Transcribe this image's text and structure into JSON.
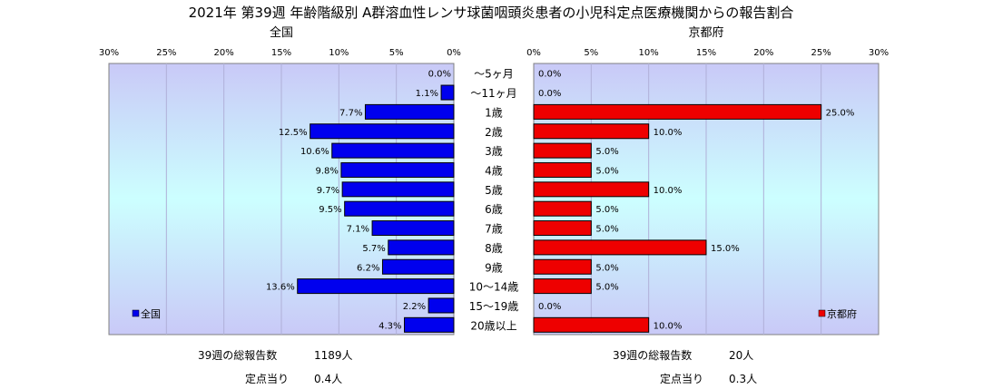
{
  "title": "2021年 第39週 年齢階級別 A群溶血性レンサ球菌咽頭炎患者の小児科定点医療機関からの報告割合",
  "chart_data": {
    "type": "bar",
    "categories": [
      "～5ヶ月",
      "～11ヶ月",
      "1歳",
      "2歳",
      "3歳",
      "4歳",
      "5歳",
      "6歳",
      "7歳",
      "8歳",
      "9歳",
      "10～14歳",
      "15～19歳",
      "20歳以上"
    ],
    "xlim": [
      0,
      30
    ],
    "ticks": [
      0,
      5,
      10,
      15,
      20,
      25,
      30
    ],
    "tick_suffix": "%",
    "grid": true,
    "panels": [
      {
        "title": "全国",
        "name": "全国",
        "color": "#0000ee",
        "direction": "left",
        "legend_position": "bottom-left",
        "values": [
          0.0,
          1.1,
          7.7,
          12.5,
          10.6,
          9.8,
          9.7,
          9.5,
          7.1,
          5.7,
          6.2,
          13.6,
          2.2,
          4.3
        ],
        "labels": [
          "0.0%",
          "1.1%",
          "7.7%",
          "12.5%",
          "10.6%",
          "9.8%",
          "9.7%",
          "9.5%",
          "7.1%",
          "5.7%",
          "6.2%",
          "13.6%",
          "2.2%",
          "4.3%"
        ]
      },
      {
        "title": "京都府",
        "name": "京都府",
        "color": "#ee0000",
        "direction": "right",
        "legend_position": "bottom-right",
        "values": [
          0.0,
          0.0,
          25.0,
          10.0,
          5.0,
          5.0,
          10.0,
          5.0,
          5.0,
          15.0,
          5.0,
          5.0,
          0.0,
          10.0
        ],
        "labels": [
          "0.0%",
          "0.0%",
          "25.0%",
          "10.0%",
          "5.0%",
          "5.0%",
          "10.0%",
          "5.0%",
          "5.0%",
          "15.0%",
          "5.0%",
          "5.0%",
          "0.0%",
          "10.0%"
        ]
      }
    ]
  },
  "footer": {
    "national": {
      "total_label": "39週の総報告数",
      "total_value": "1189人",
      "per_label": "定点当り",
      "per_value": "0.4人"
    },
    "kyoto": {
      "total_label": "39週の総報告数",
      "total_value": "20人",
      "per_label": "定点当り",
      "per_value": "0.3人"
    }
  }
}
